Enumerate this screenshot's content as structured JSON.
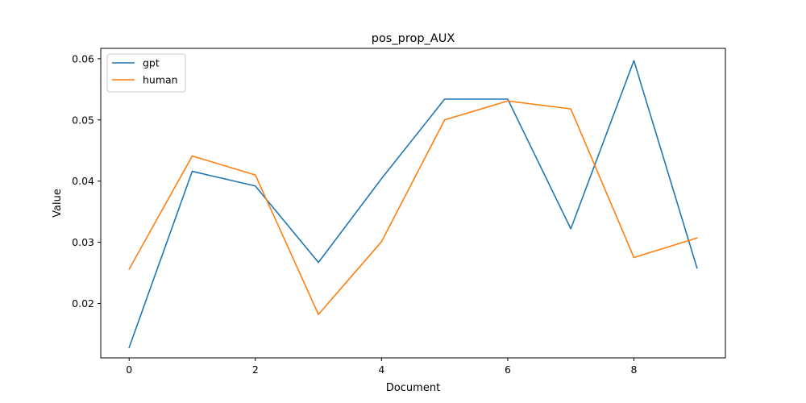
{
  "chart_data": {
    "type": "line",
    "title": "pos_prop_AUX",
    "xlabel": "Document",
    "ylabel": "Value",
    "x": [
      0,
      1,
      2,
      3,
      4,
      5,
      6,
      7,
      8,
      9
    ],
    "xlim": [
      -0.45,
      9.45
    ],
    "ylim": [
      0.0111,
      0.0617
    ],
    "xticks": [
      0,
      2,
      4,
      6,
      8
    ],
    "xtick_labels": [
      "0",
      "2",
      "4",
      "6",
      "8"
    ],
    "yticks": [
      0.02,
      0.03,
      0.04,
      0.05,
      0.06
    ],
    "ytick_labels": [
      "0.02",
      "0.03",
      "0.04",
      "0.05",
      "0.06"
    ],
    "grid": false,
    "legend_position": "top-left",
    "series": [
      {
        "name": "gpt",
        "color": "#1f77b4",
        "values": [
          0.0128,
          0.0416,
          0.0392,
          0.0267,
          0.0404,
          0.0534,
          0.0534,
          0.0322,
          0.0597,
          0.0258
        ]
      },
      {
        "name": "human",
        "color": "#ff7f0e",
        "values": [
          0.0256,
          0.0441,
          0.041,
          0.0182,
          0.0301,
          0.05,
          0.0531,
          0.0518,
          0.0275,
          0.0307
        ]
      }
    ]
  }
}
